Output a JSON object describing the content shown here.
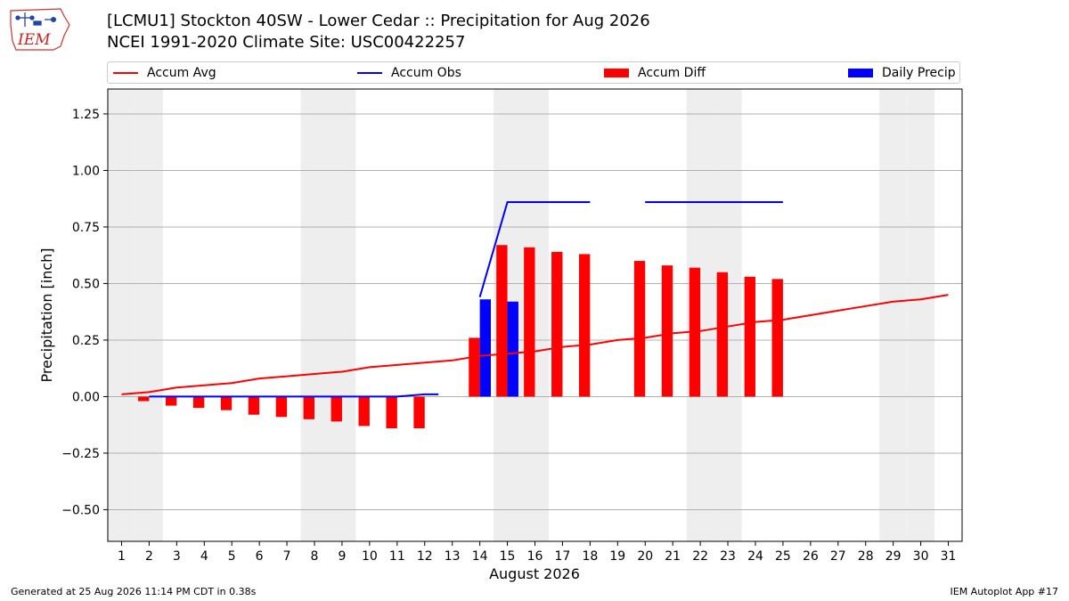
{
  "header": {
    "title_line1": "[LCMU1] Stockton 40SW - Lower Cedar :: Precipitation for Aug 2026",
    "title_line2": "NCEI 1991-2020 Climate Site: USC00422257",
    "logo_text": "IEM"
  },
  "legend": {
    "items": [
      {
        "label": "Accum Avg",
        "kind": "line",
        "color": "#ff0000"
      },
      {
        "label": "Accum Obs",
        "kind": "line",
        "color": "#0000ff"
      },
      {
        "label": "Accum Diff",
        "kind": "patch",
        "color": "#ff0000"
      },
      {
        "label": "Daily Precip",
        "kind": "patch",
        "color": "#0000ff"
      }
    ]
  },
  "footer": {
    "left": "Generated at 25 Aug 2026 11:14 PM CDT in 0.38s",
    "right": "IEM Autoplot App #17"
  },
  "chart_data": {
    "type": "bar",
    "xlabel": "August 2026",
    "ylabel": "Precipitation [inch]",
    "xlim": [
      0.5,
      31.5
    ],
    "ylim": [
      -0.64,
      1.36
    ],
    "yticks": [
      -0.5,
      -0.25,
      0,
      0.25,
      0.5,
      0.75,
      1.0,
      1.25
    ],
    "ytick_labels": [
      "−0.50",
      "−0.25",
      "0.00",
      "0.25",
      "0.50",
      "0.75",
      "1.00",
      "1.25"
    ],
    "days": [
      1,
      2,
      3,
      4,
      5,
      6,
      7,
      8,
      9,
      10,
      11,
      12,
      13,
      14,
      15,
      16,
      17,
      18,
      19,
      20,
      21,
      22,
      23,
      24,
      25,
      26,
      27,
      28,
      29,
      30,
      31
    ],
    "weekend_days": [
      1,
      2,
      8,
      9,
      15,
      16,
      22,
      23,
      29,
      30
    ],
    "grid": "horizontal",
    "legend_placement": "top",
    "colors": {
      "avg": "#ff0000",
      "obs": "#0000ff",
      "diff": "#ff0000",
      "daily": "#0000ff",
      "weekend": "#eeeeee",
      "grid": "#b0b0b0"
    },
    "series": [
      {
        "name": "Accum Avg",
        "kind": "line",
        "x": [
          1,
          2,
          3,
          4,
          5,
          6,
          7,
          8,
          9,
          10,
          11,
          12,
          13,
          14,
          15,
          16,
          17,
          18,
          19,
          20,
          21,
          22,
          23,
          24,
          25,
          26,
          27,
          28,
          29,
          30,
          31
        ],
        "values": [
          0.01,
          0.02,
          0.04,
          0.05,
          0.06,
          0.08,
          0.09,
          0.1,
          0.11,
          0.13,
          0.14,
          0.15,
          0.16,
          0.18,
          0.19,
          0.2,
          0.22,
          0.23,
          0.25,
          0.26,
          0.28,
          0.29,
          0.31,
          0.33,
          0.34,
          0.36,
          0.38,
          0.4,
          0.42,
          0.43,
          0.45
        ]
      },
      {
        "name": "Accum Obs",
        "kind": "line",
        "segments": [
          {
            "x": [
              2,
              3,
              4,
              5,
              6,
              7,
              8,
              9,
              10,
              11,
              12,
              12.5
            ],
            "values": [
              0,
              0,
              0,
              0,
              0,
              0,
              0,
              0,
              0,
              0,
              0.01,
              0.01
            ]
          },
          {
            "x": [
              14,
              15,
              16,
              17,
              18
            ],
            "values": [
              0.44,
              0.86,
              0.86,
              0.86,
              0.86
            ]
          },
          {
            "x": [
              20,
              21,
              22,
              23,
              24,
              25
            ],
            "values": [
              0.86,
              0.86,
              0.86,
              0.86,
              0.86,
              0.86
            ]
          }
        ]
      },
      {
        "name": "Accum Diff",
        "kind": "bar",
        "x": [
          2,
          3,
          4,
          5,
          6,
          7,
          8,
          9,
          10,
          11,
          12,
          14,
          15,
          16,
          17,
          18,
          20,
          21,
          22,
          23,
          24,
          25
        ],
        "values": [
          -0.02,
          -0.04,
          -0.05,
          -0.06,
          -0.08,
          -0.09,
          -0.1,
          -0.11,
          -0.13,
          -0.14,
          -0.14,
          0.26,
          0.67,
          0.66,
          0.64,
          0.63,
          0.6,
          0.58,
          0.57,
          0.55,
          0.53,
          0.52
        ]
      },
      {
        "name": "Daily Precip",
        "kind": "bar",
        "x": [
          14,
          15
        ],
        "values": [
          0.43,
          0.42
        ]
      }
    ]
  }
}
